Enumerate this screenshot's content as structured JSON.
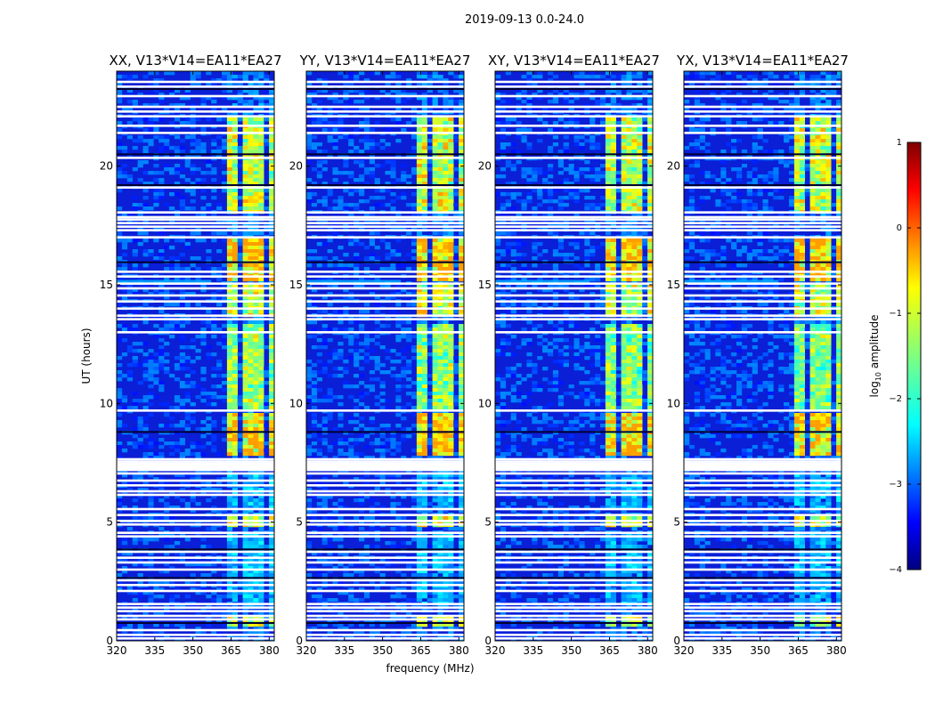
{
  "chart_data": {
    "type": "heatmap",
    "suptitle": "2019-09-13 0.0-24.0",
    "xlabel": "frequency (MHz)",
    "ylabel": "UT (hours)",
    "xlim": [
      320,
      382
    ],
    "ylim": [
      0,
      24
    ],
    "xticks": [
      "320",
      "335",
      "350",
      "365",
      "380"
    ],
    "yticks": [
      "0",
      "5",
      "10",
      "15",
      "20"
    ],
    "panels": [
      {
        "title": "XX, V13*V14=EA11*EA27",
        "polarization": "XX"
      },
      {
        "title": "YY, V13*V14=EA11*EA27",
        "polarization": "YY"
      },
      {
        "title": "XY, V13*V14=EA11*EA27",
        "polarization": "XY"
      },
      {
        "title": "YX, V13*V14=EA11*EA27",
        "polarization": "YX"
      }
    ],
    "colorbar": {
      "label": "log10 amplitude",
      "label_main": "log",
      "label_sub": "10",
      "label_rest": " amplitude",
      "range": [
        -4,
        1
      ],
      "ticks": [
        "1",
        "0",
        "−1",
        "−2",
        "−3",
        "−4"
      ],
      "colormap": "jet"
    },
    "bright_band_mhz": [
      363,
      381
    ],
    "bright_channel_blocks_mhz": [
      [
        363,
        367.5
      ],
      [
        369,
        373
      ],
      [
        374.5,
        378
      ],
      [
        379.5,
        381
      ]
    ],
    "flagged_ut_hours": [
      0.1,
      0.25,
      0.45,
      0.9,
      1.05,
      1.25,
      1.4,
      1.55,
      2.1,
      2.35,
      2.55,
      3.0,
      3.3,
      3.5,
      3.75,
      4.4,
      4.55,
      4.9,
      5.05,
      5.3,
      5.55,
      6.15,
      6.3,
      6.55,
      6.75,
      7.05,
      7.25,
      7.35,
      7.45,
      7.55,
      7.65,
      9.7,
      13.0,
      13.55,
      13.7,
      14.0,
      14.3,
      14.55,
      14.85,
      15.05,
      15.35,
      15.55,
      17.0,
      17.3,
      17.45,
      17.6,
      17.75,
      17.85,
      18.05,
      19.1,
      20.35,
      21.4,
      21.7,
      22.1,
      22.3,
      22.5,
      22.95,
      23.35,
      23.55
    ],
    "dark_ut_hours": [
      0.75,
      2.65,
      3.85,
      8.8,
      15.95,
      19.2,
      20.5,
      23.25
    ]
  }
}
